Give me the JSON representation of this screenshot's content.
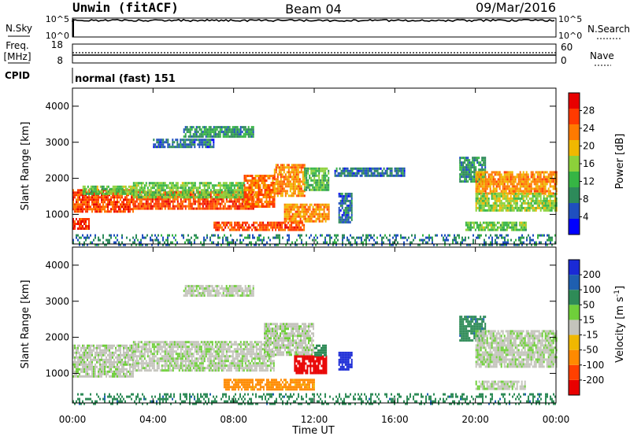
{
  "header": {
    "station": "Unwin (fitACF)",
    "beam": "Beam 04",
    "date": "09/Mar/2016"
  },
  "noise_panel": {
    "left_label": "N.Sky",
    "right_label": "N.Search",
    "left_ticks": [
      "10^5",
      "10^0"
    ],
    "right_ticks": [
      "10^5",
      "10^0"
    ]
  },
  "freq_panel": {
    "left_label_1": "Freq.",
    "left_label_2": "[MHz]",
    "right_label": "Nave",
    "left_ticks": [
      "18",
      "8"
    ],
    "right_ticks": [
      "60",
      "0"
    ]
  },
  "cpid": {
    "label": "CPID",
    "value": "normal (fast) 151"
  },
  "x_axis": {
    "label": "Time UT",
    "ticks": [
      "00:00",
      "04:00",
      "08:00",
      "12:00",
      "16:00",
      "20:00",
      "00:00"
    ]
  },
  "colors": {
    "scale": [
      "#0000ff",
      "#1f4fbf",
      "#2d8a5a",
      "#36b544",
      "#8cd13a",
      "#f0b800",
      "#ff7a00",
      "#ff3a00",
      "#e80000"
    ],
    "gs_gray": "#c4c4bc"
  },
  "chart_data": [
    {
      "type": "heatmap",
      "panel": "power",
      "ylabel": "Slant Range [km]",
      "yticks": [
        "4000",
        "3000",
        "2000",
        "1000"
      ],
      "ylim": [
        180,
        4500
      ],
      "xlim": [
        0,
        24
      ],
      "colorbar_label": "Power [dB]",
      "colorbar_ticks": [
        "28",
        "24",
        "20",
        "16",
        "12",
        "8",
        "4"
      ],
      "colorbar_range": [
        0,
        32
      ],
      "echo_regions": [
        {
          "t": [
            0.0,
            3.0
          ],
          "r": [
            1100,
            1700
          ],
          "value": 26
        },
        {
          "t": [
            3.0,
            9.0
          ],
          "r": [
            1150,
            1650
          ],
          "value": 26
        },
        {
          "t": [
            0.5,
            3.0
          ],
          "r": [
            1600,
            1800
          ],
          "value": 14
        },
        {
          "t": [
            3.0,
            8.5
          ],
          "r": [
            1500,
            1900
          ],
          "value": 14
        },
        {
          "t": [
            8.5,
            10.0
          ],
          "r": [
            1200,
            2100
          ],
          "value": 24
        },
        {
          "t": [
            10.0,
            11.5
          ],
          "r": [
            1500,
            2400
          ],
          "value": 22
        },
        {
          "t": [
            11.5,
            12.7
          ],
          "r": [
            1700,
            2300
          ],
          "value": 13
        },
        {
          "t": [
            10.5,
            12.7
          ],
          "r": [
            800,
            1300
          ],
          "value": 22
        },
        {
          "t": [
            7.0,
            11.5
          ],
          "r": [
            550,
            800
          ],
          "value": 26
        },
        {
          "t": [
            0.0,
            0.8
          ],
          "r": [
            600,
            900
          ],
          "value": 28
        },
        {
          "t": [
            5.5,
            9.0
          ],
          "r": [
            3150,
            3450
          ],
          "value": 10
        },
        {
          "t": [
            4.0,
            7.0
          ],
          "r": [
            2900,
            3100
          ],
          "value": 7
        },
        {
          "t": [
            13.2,
            13.9
          ],
          "r": [
            800,
            1600
          ],
          "value": 7
        },
        {
          "t": [
            13.0,
            16.5
          ],
          "r": [
            2100,
            2300
          ],
          "value": 7
        },
        {
          "t": [
            19.2,
            20.5
          ],
          "r": [
            1900,
            2600
          ],
          "value": 10
        },
        {
          "t": [
            20.0,
            24.0
          ],
          "r": [
            1600,
            2200
          ],
          "value": 22
        },
        {
          "t": [
            20.0,
            24.0
          ],
          "r": [
            1100,
            1600
          ],
          "value": 16
        },
        {
          "t": [
            19.5,
            22.5
          ],
          "r": [
            550,
            800
          ],
          "value": 14
        },
        {
          "t": [
            0.0,
            24.0
          ],
          "r": [
            180,
            450
          ],
          "value": 8
        }
      ]
    },
    {
      "type": "heatmap",
      "panel": "velocity",
      "ylabel": "Slant Range [km]",
      "yticks": [
        "4000",
        "3000",
        "2000",
        "1000"
      ],
      "ylim": [
        180,
        4500
      ],
      "xlim": [
        0,
        24
      ],
      "colorbar_label": "Velocity [m s^-1]",
      "colorbar_ticks": [
        "200",
        "100",
        "50",
        "15",
        "-15",
        "-50",
        "-100",
        "-200"
      ],
      "echo_regions": [
        {
          "t": [
            0.0,
            3.0
          ],
          "r": [
            900,
            1800
          ],
          "value": 0
        },
        {
          "t": [
            3.0,
            10.0
          ],
          "r": [
            1100,
            1900
          ],
          "value": 0
        },
        {
          "t": [
            9.5,
            12.0
          ],
          "r": [
            1500,
            2400
          ],
          "value": 0
        },
        {
          "t": [
            5.5,
            9.0
          ],
          "r": [
            3150,
            3450
          ],
          "value": 0
        },
        {
          "t": [
            7.5,
            12.0
          ],
          "r": [
            550,
            850
          ],
          "value": -60
        },
        {
          "t": [
            11.0,
            12.6
          ],
          "r": [
            1000,
            1500
          ],
          "value": -220
        },
        {
          "t": [
            12.0,
            12.6
          ],
          "r": [
            1500,
            1800
          ],
          "value": 30
        },
        {
          "t": [
            13.2,
            13.9
          ],
          "r": [
            1100,
            1600
          ],
          "value": 220
        },
        {
          "t": [
            19.2,
            20.5
          ],
          "r": [
            1900,
            2600
          ],
          "value": 40
        },
        {
          "t": [
            20.0,
            24.0
          ],
          "r": [
            1200,
            2200
          ],
          "value": 0
        },
        {
          "t": [
            20.0,
            22.5
          ],
          "r": [
            550,
            800
          ],
          "value": 0
        },
        {
          "t": [
            0.0,
            24.0
          ],
          "r": [
            180,
            450
          ],
          "value": 40
        }
      ]
    }
  ]
}
